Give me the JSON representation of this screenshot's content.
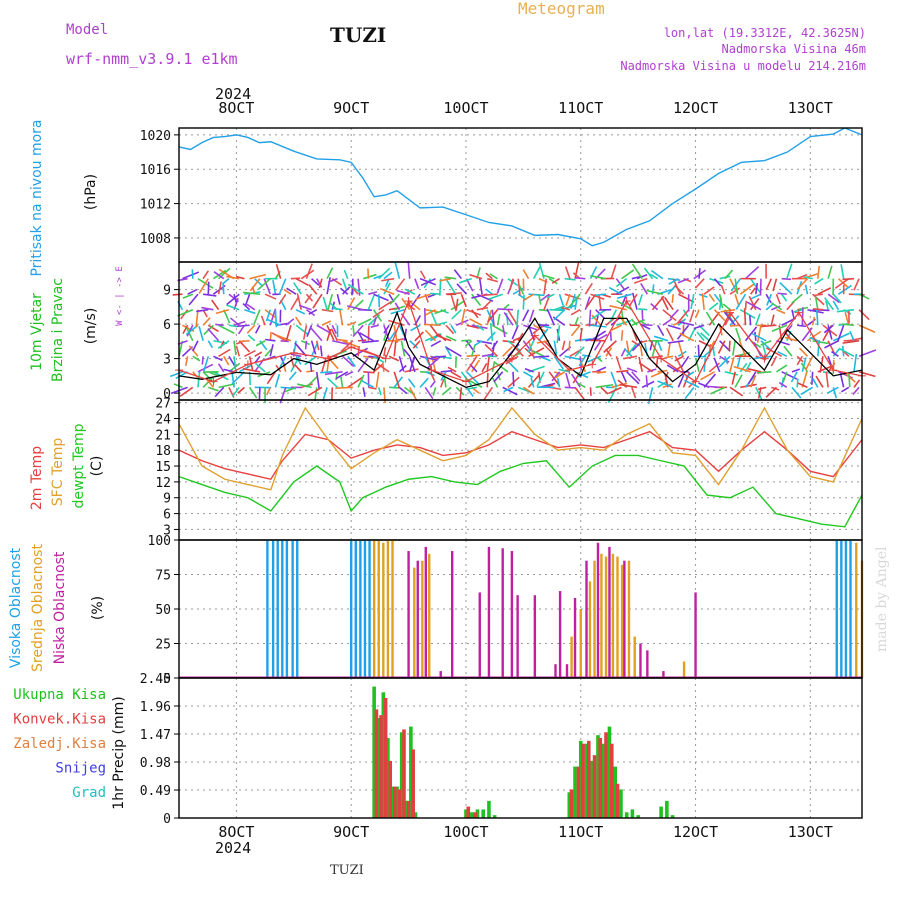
{
  "header": {
    "model_label": "Model",
    "model_name": "wrf-nmm_v3.9.1 e1km",
    "station": "TUZI",
    "meteogram": "Meteogram",
    "lonlat": "lon,lat (19.3312E, 42.3625N)",
    "elev": "Nadmorska Visina 46m",
    "elev_model": "Nadmorska Visina u modelu 214.216m",
    "watermark": "made by Angel",
    "footer_station": "TUZI"
  },
  "time_axis": {
    "year": "2024",
    "ticks": [
      "8OCT",
      "9OCT",
      "10OCT",
      "11OCT",
      "12OCT",
      "13OCT"
    ],
    "range_days": [
      7.5,
      13.45
    ]
  },
  "colors": {
    "pressure": "#22a0e8",
    "t2m": "#e84040",
    "sfc": "#e0a030",
    "dewpt": "#20c820",
    "high": "#20a0e8",
    "mid": "#e0a020",
    "low": "#c020a0",
    "precip_total": "#20c020",
    "precip_conv": "#e04040",
    "precip_frz": "#e08040",
    "snow": "#4040e0",
    "grad": "#20c0c0",
    "model": "#b040d0",
    "meteo": "#e8b050"
  },
  "chart_data": [
    {
      "type": "line",
      "panel": "pressure",
      "ylabel_main": "Pritisak na nivou mora",
      "ylabel_unit": "(hPa)",
      "yticks": [
        "1008",
        "1012",
        "1016",
        "1020"
      ],
      "ylim": [
        1005.2,
        1020.8
      ],
      "series": [
        {
          "color": "#22a0e8",
          "x": [
            7.5,
            7.6,
            7.7,
            7.8,
            7.9,
            8.0,
            8.1,
            8.2,
            8.3,
            8.5,
            8.7,
            8.9,
            9.0,
            9.1,
            9.2,
            9.3,
            9.4,
            9.6,
            9.8,
            10.0,
            10.2,
            10.4,
            10.6,
            10.8,
            11.0,
            11.1,
            11.2,
            11.4,
            11.6,
            11.8,
            12.0,
            12.2,
            12.4,
            12.6,
            12.8,
            13.0,
            13.2,
            13.3,
            13.45
          ],
          "y": [
            1018.6,
            1018.3,
            1019.1,
            1019.7,
            1019.8,
            1020.0,
            1019.7,
            1019.1,
            1019.2,
            1018.1,
            1017.2,
            1017.1,
            1016.8,
            1015.0,
            1012.8,
            1013.0,
            1013.5,
            1011.5,
            1011.6,
            1010.7,
            1009.8,
            1009.4,
            1008.3,
            1008.4,
            1007.9,
            1007.1,
            1007.5,
            1009.0,
            1010.0,
            1012.0,
            1013.7,
            1015.5,
            1016.8,
            1017.0,
            1018.0,
            1019.8,
            1020.1,
            1020.8,
            1020.0
          ]
        }
      ]
    },
    {
      "type": "line",
      "panel": "wind",
      "ylabel_main": "10m Vjetar",
      "ylabel_sub": "Brzina i Pravac",
      "ylabel_unit": "(m/s)",
      "compass": "W <- | -> E",
      "compass_ns": "N S",
      "yticks": [
        "0",
        "3",
        "6",
        "9"
      ],
      "ylim": [
        -0.6,
        11.4
      ],
      "series": [
        {
          "name": "speed",
          "color": "#000000",
          "x": [
            7.5,
            7.7,
            8.0,
            8.3,
            8.5,
            8.7,
            9.0,
            9.2,
            9.4,
            9.5,
            9.6,
            9.8,
            10.0,
            10.2,
            10.4,
            10.6,
            10.8,
            11.0,
            11.2,
            11.4,
            11.6,
            11.8,
            12.0,
            12.2,
            12.4,
            12.6,
            12.8,
            13.0,
            13.2,
            13.45
          ],
          "y": [
            1.5,
            1.2,
            1.8,
            1.6,
            3.0,
            2.5,
            3.5,
            2.0,
            7.0,
            4.0,
            2.5,
            1.5,
            0.5,
            1.0,
            3.5,
            6.5,
            3.0,
            1.5,
            6.5,
            6.5,
            3.0,
            1.0,
            2.5,
            6.0,
            4.0,
            2.0,
            5.5,
            3.5,
            1.5,
            2.0
          ]
        },
        {
          "name": "gust",
          "color": "#e84040",
          "x": [
            7.5,
            7.8,
            8.1,
            8.5,
            8.8,
            9.0,
            9.3,
            9.5,
            9.7,
            10.0,
            10.4,
            10.6,
            10.9,
            11.1,
            11.4,
            11.7,
            12.0,
            12.3,
            12.6,
            12.9,
            13.2,
            13.45
          ],
          "y": [
            2.0,
            1.0,
            2.5,
            3.5,
            3.0,
            4.0,
            3.0,
            8.0,
            2.0,
            1.0,
            3.0,
            5.0,
            2.0,
            2.5,
            8.0,
            3.0,
            1.0,
            7.0,
            3.0,
            7.0,
            2.0,
            1.5
          ]
        }
      ]
    },
    {
      "type": "line",
      "panel": "temperature",
      "ylabel_main": "2m Temp",
      "ylabel_sub": "SFC Temp",
      "ylabel_sub2": "dewpt Temp",
      "ylabel_unit": "(C)",
      "yticks": [
        "3",
        "6",
        "9",
        "12",
        "15",
        "18",
        "21",
        "24",
        "27"
      ],
      "ylim": [
        1.0,
        27.5
      ],
      "series": [
        {
          "name": "2m Temp",
          "color": "#e84040",
          "x": [
            7.5,
            7.7,
            7.9,
            8.1,
            8.3,
            8.4,
            8.6,
            8.8,
            9.0,
            9.2,
            9.4,
            9.6,
            9.8,
            10.0,
            10.2,
            10.4,
            10.6,
            10.8,
            11.0,
            11.2,
            11.4,
            11.6,
            11.8,
            12.0,
            12.2,
            12.4,
            12.6,
            12.8,
            13.0,
            13.2,
            13.45
          ],
          "y": [
            18.0,
            16.0,
            14.5,
            13.5,
            12.5,
            16.0,
            21.0,
            20.0,
            16.5,
            18.0,
            19.0,
            18.5,
            17.0,
            17.5,
            19.0,
            21.5,
            20.0,
            18.5,
            19.0,
            18.5,
            20.0,
            21.5,
            18.5,
            18.0,
            14.0,
            18.0,
            21.5,
            18.0,
            14.0,
            13.0,
            20.0
          ]
        },
        {
          "name": "SFC Temp",
          "color": "#e0a030",
          "x": [
            7.5,
            7.7,
            7.9,
            8.1,
            8.3,
            8.4,
            8.6,
            8.8,
            9.0,
            9.2,
            9.4,
            9.6,
            9.8,
            10.0,
            10.2,
            10.4,
            10.6,
            10.8,
            11.0,
            11.2,
            11.4,
            11.6,
            11.8,
            12.0,
            12.2,
            12.4,
            12.6,
            12.8,
            13.0,
            13.2,
            13.45
          ],
          "y": [
            23.0,
            15.0,
            12.5,
            11.5,
            10.5,
            17.0,
            26.0,
            20.0,
            14.5,
            17.5,
            20.0,
            18.0,
            16.0,
            17.0,
            20.0,
            26.0,
            21.0,
            18.0,
            18.5,
            18.0,
            21.0,
            23.0,
            17.5,
            17.0,
            11.5,
            18.0,
            26.0,
            18.0,
            13.0,
            12.0,
            24.0
          ]
        },
        {
          "name": "dewpt Temp",
          "color": "#20c820",
          "x": [
            7.5,
            7.7,
            7.9,
            8.1,
            8.3,
            8.5,
            8.7,
            8.9,
            9.0,
            9.1,
            9.3,
            9.5,
            9.7,
            9.9,
            10.1,
            10.3,
            10.5,
            10.7,
            10.9,
            11.1,
            11.3,
            11.5,
            11.7,
            11.9,
            12.1,
            12.3,
            12.5,
            12.7,
            12.9,
            13.1,
            13.3,
            13.45
          ],
          "y": [
            13.0,
            11.5,
            10.0,
            9.0,
            6.5,
            12.0,
            15.0,
            12.0,
            6.5,
            9.0,
            11.0,
            12.5,
            13.0,
            12.0,
            11.5,
            14.0,
            15.5,
            16.0,
            11.0,
            15.0,
            17.0,
            17.0,
            16.0,
            15.0,
            9.5,
            9.0,
            11.0,
            6.0,
            5.0,
            4.0,
            3.5,
            9.5
          ]
        }
      ]
    },
    {
      "type": "bar",
      "panel": "clouds",
      "ylabel_main": "Visoka Oblacnost",
      "ylabel_sub": "Srednja Oblacnost",
      "ylabel_sub2": "Niska Oblacnost",
      "ylabel_unit": "(%)",
      "yticks": [
        "0",
        "25",
        "50",
        "75",
        "100"
      ],
      "ylim": [
        0,
        100
      ],
      "series": [
        {
          "name": "Visoka Oblacnost",
          "color": "#20a0e8",
          "x": [
            8.27,
            8.32,
            8.36,
            8.4,
            8.44,
            8.49,
            8.53,
            9.0,
            9.04,
            9.08,
            9.12,
            9.16,
            13.23,
            13.27,
            13.31,
            13.35
          ],
          "y": [
            100,
            100,
            100,
            100,
            100,
            100,
            100,
            100,
            100,
            100,
            100,
            100,
            100,
            100,
            100,
            100
          ]
        },
        {
          "name": "Srednja Oblacnost",
          "color": "#e0a020",
          "x": [
            9.2,
            9.24,
            9.28,
            9.32,
            9.36,
            9.55,
            9.62,
            9.68,
            10.92,
            11.0,
            11.08,
            11.12,
            11.18,
            11.22,
            11.28,
            11.32,
            11.36,
            11.42,
            11.47,
            11.9,
            13.4,
            13.45
          ],
          "y": [
            100,
            100,
            98,
            100,
            100,
            80,
            85,
            90,
            30,
            50,
            70,
            85,
            90,
            88,
            90,
            88,
            82,
            85,
            30,
            12,
            98,
            85
          ]
        },
        {
          "name": "Niska Oblacnost",
          "color": "#c020a0",
          "x": [
            9.5,
            9.58,
            9.65,
            9.78,
            9.88,
            10.12,
            10.2,
            10.32,
            10.4,
            10.45,
            10.6,
            10.78,
            10.82,
            10.88,
            10.95,
            11.05,
            11.15,
            11.25,
            11.38,
            11.52,
            11.58,
            11.72,
            12.0
          ],
          "y": [
            92,
            85,
            95,
            5,
            92,
            62,
            95,
            94,
            92,
            60,
            60,
            10,
            63,
            10,
            58,
            85,
            98,
            95,
            85,
            25,
            20,
            5,
            62
          ]
        }
      ]
    },
    {
      "type": "bar",
      "panel": "precipitation",
      "ylabel_unit": "1hr Precip (mm)",
      "legend": [
        "Ukupna Kisa",
        "Konvek.Kisa",
        "Zaledj.Kisa",
        "Snijeg",
        "Grad"
      ],
      "yticks": [
        "0",
        "0.49",
        "0.98",
        "1.47",
        "1.96",
        "2.45"
      ],
      "ylim": [
        0,
        2.45
      ],
      "series": [
        {
          "name": "Ukupna Kisa",
          "color": "#20c020",
          "x": [
            9.2,
            9.24,
            9.28,
            9.32,
            9.36,
            9.4,
            9.44,
            9.48,
            9.52,
            9.56,
            9.6,
            10.0,
            10.05,
            10.1,
            10.15,
            10.2,
            10.25,
            10.9,
            10.95,
            11.0,
            11.05,
            11.1,
            11.15,
            11.2,
            11.25,
            11.3,
            11.35,
            11.4,
            11.45,
            11.5,
            11.7,
            11.75,
            11.8
          ],
          "y": [
            2.3,
            1.75,
            2.2,
            1.4,
            0.55,
            0.55,
            1.5,
            0.3,
            1.6,
            0.1,
            0.0,
            0.15,
            0.1,
            0.15,
            0.15,
            0.3,
            0.05,
            0.45,
            0.9,
            1.35,
            1.3,
            1.0,
            1.45,
            1.3,
            1.6,
            0.9,
            0.5,
            0.1,
            0.15,
            0.05,
            0.2,
            0.3,
            0.05
          ]
        },
        {
          "name": "Konvek.Kisa",
          "color": "#e04040",
          "x": [
            9.22,
            9.26,
            9.3,
            9.34,
            9.38,
            9.42,
            9.46,
            9.5,
            9.54,
            10.02,
            10.08,
            10.92,
            10.98,
            11.02,
            11.07,
            11.12,
            11.17,
            11.22,
            11.27,
            11.32
          ],
          "y": [
            1.9,
            1.8,
            2.1,
            1.0,
            0.55,
            0.5,
            1.55,
            0.3,
            1.2,
            0.2,
            0.1,
            0.5,
            0.9,
            1.3,
            1.35,
            1.1,
            1.4,
            1.5,
            1.3,
            0.6
          ]
        },
        {
          "name": "Zaledj.Kisa",
          "color": "#e08040",
          "x": [],
          "y": []
        },
        {
          "name": "Snijeg",
          "color": "#4040e0",
          "x": [],
          "y": []
        },
        {
          "name": "Grad",
          "color": "#20c0c0",
          "x": [],
          "y": []
        }
      ]
    }
  ]
}
